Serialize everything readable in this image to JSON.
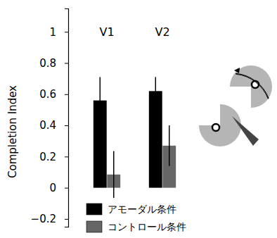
{
  "chart_data": {
    "type": "bar",
    "y_label": "Completion Index",
    "categories": [
      "V1",
      "V2"
    ],
    "series": [
      {
        "name": "アモーダル条件",
        "color": "#000000",
        "values": [
          0.56,
          0.62
        ],
        "errors": [
          0.15,
          0.09
        ]
      },
      {
        "name": "コントロール条件",
        "color": "#666666",
        "values": [
          0.085,
          0.27
        ],
        "errors": [
          0.15,
          0.13
        ]
      }
    ],
    "ylim": [
      -0.25,
      1.15
    ],
    "yticks": [
      {
        "value": -0.2,
        "label": "−0.2"
      },
      0,
      0.2,
      0.4,
      0.6,
      0.8,
      1
    ],
    "legend": "bottom"
  }
}
